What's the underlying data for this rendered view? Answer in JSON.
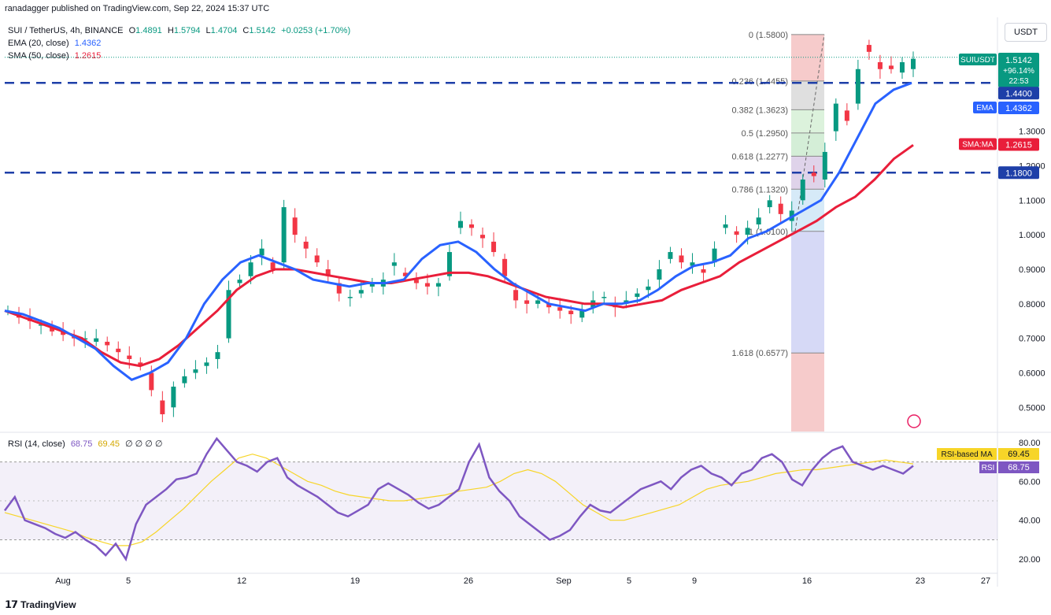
{
  "publisher": "ranadagger published on TradingView.com, Sep 22, 2024 15:37 UTC",
  "brand": "TradingView",
  "currency_button": "USDT",
  "legend": {
    "symbol": "SUI / TetherUS, 4h, BINANCE",
    "o_label": "O",
    "o": "1.4891",
    "h_label": "H",
    "h": "1.5794",
    "l_label": "L",
    "l": "1.4704",
    "c_label": "C",
    "c": "1.5142",
    "change": "+0.0253 (+1.70%)",
    "ema_label": "EMA (20, close)",
    "ema_value": "1.4362",
    "sma_label": "SMA (50, close)",
    "sma_value": "1.2615",
    "rsi_label": "RSI (14, close)",
    "rsi_value": "68.75",
    "rsi_ma_value": "69.45",
    "rsi_extra": "∅ ∅ ∅ ∅"
  },
  "price_tags": {
    "symbol_tag": "SUIUSDT",
    "last": "1.5142",
    "pct": "+96.14%",
    "countdown": "22:53",
    "res1": "1.4400",
    "ema_tag": "EMA",
    "ema": "1.4362",
    "sma_tag": "SMA:MA",
    "sma": "1.2615",
    "res2": "1.1800",
    "rsi_ma_tag": "RSI-based MA",
    "rsi_ma": "69.45",
    "rsi_tag": "RSI",
    "rsi": "68.75"
  },
  "colors": {
    "up": "#089981",
    "down": "#f23645",
    "ema": "#2962ff",
    "sma": "#e91e3a",
    "level": "#1e3fa8",
    "rsi": "#7e57c2",
    "rsi_ma": "#f7d528"
  },
  "chart_data": {
    "type": "candlestick",
    "title": "SUI / TetherUS, 4h, BINANCE",
    "y_axis_ticks": [
      "0.5000",
      "0.6000",
      "0.7000",
      "0.8000",
      "0.9000",
      "1.0000",
      "1.1000",
      "1.2000",
      "1.3000"
    ],
    "x_axis_ticks": [
      "Aug",
      "5",
      "12",
      "19",
      "26",
      "Sep",
      "5",
      "9",
      "16",
      "23",
      "27"
    ],
    "ylim": [
      0.43,
      1.63
    ],
    "horizontal_levels": [
      1.44,
      1.18
    ],
    "fib_levels": [
      {
        "ratio": "0",
        "price": 1.58,
        "label": "0 (1.5800)",
        "color": "#f5c2c2"
      },
      {
        "ratio": "0.236",
        "price": 1.4455,
        "label": "0.236 (1.4455)",
        "color": "#d9d9d9"
      },
      {
        "ratio": "0.382",
        "price": 1.3623,
        "label": "0.382 (1.3623)",
        "color": "#d6f0d6"
      },
      {
        "ratio": "0.5",
        "price": 1.295,
        "label": "0.5 (1.2950)",
        "color": "#cdebd0"
      },
      {
        "ratio": "0.618",
        "price": 1.2277,
        "label": "0.618 (1.2277)",
        "color": "#d9cbe6"
      },
      {
        "ratio": "0.786",
        "price": 1.132,
        "label": "0.786 (1.1320)",
        "color": "#cfe6f7"
      },
      {
        "ratio": "1",
        "price": 1.01,
        "label": "1 (1.0100)",
        "color": "#cfd2f5"
      },
      {
        "ratio": "1.618",
        "price": 0.6577,
        "label": "1.618 (0.6577)",
        "color": "#f5c2c2"
      }
    ],
    "price_path": [
      [
        0.78,
        0.78
      ],
      [
        0.77,
        0.76
      ],
      [
        0.76,
        0.75
      ],
      [
        0.74,
        0.74
      ],
      [
        0.73,
        0.72
      ],
      [
        0.72,
        0.71
      ],
      [
        0.71,
        0.7
      ],
      [
        0.7,
        0.7
      ],
      [
        0.69,
        0.7
      ],
      [
        0.69,
        0.68
      ],
      [
        0.67,
        0.66
      ],
      [
        0.65,
        0.64
      ],
      [
        0.63,
        0.62
      ],
      [
        0.6,
        0.55
      ],
      [
        0.52,
        0.48
      ],
      [
        0.5,
        0.56
      ],
      [
        0.57,
        0.59
      ],
      [
        0.6,
        0.61
      ],
      [
        0.62,
        0.63
      ],
      [
        0.64,
        0.66
      ],
      [
        0.7,
        0.84
      ],
      [
        0.86,
        0.87
      ],
      [
        0.88,
        0.92
      ],
      [
        0.94,
        0.96
      ],
      [
        0.92,
        0.9
      ],
      [
        0.92,
        1.08
      ],
      [
        1.05,
        1.0
      ],
      [
        0.98,
        0.96
      ],
      [
        0.94,
        0.92
      ],
      [
        0.9,
        0.88
      ],
      [
        0.86,
        0.83
      ],
      [
        0.82,
        0.82
      ],
      [
        0.83,
        0.84
      ],
      [
        0.85,
        0.86
      ],
      [
        0.85,
        0.87
      ],
      [
        0.91,
        0.92
      ],
      [
        0.89,
        0.88
      ],
      [
        0.87,
        0.86
      ],
      [
        0.86,
        0.85
      ],
      [
        0.85,
        0.86
      ],
      [
        0.88,
        0.95
      ],
      [
        1.02,
        1.04
      ],
      [
        1.03,
        1.02
      ],
      [
        1.0,
        0.99
      ],
      [
        0.98,
        0.95
      ],
      [
        0.93,
        0.88
      ],
      [
        0.84,
        0.81
      ],
      [
        0.81,
        0.8
      ],
      [
        0.8,
        0.81
      ],
      [
        0.8,
        0.79
      ],
      [
        0.79,
        0.78
      ],
      [
        0.78,
        0.77
      ],
      [
        0.76,
        0.78
      ],
      [
        0.79,
        0.81
      ],
      [
        0.82,
        0.82
      ],
      [
        0.8,
        0.79
      ],
      [
        0.8,
        0.81
      ],
      [
        0.82,
        0.83
      ],
      [
        0.84,
        0.85
      ],
      [
        0.87,
        0.9
      ],
      [
        0.93,
        0.95
      ],
      [
        0.94,
        0.92
      ],
      [
        0.91,
        0.92
      ],
      [
        0.9,
        0.89
      ],
      [
        0.92,
        0.96
      ],
      [
        1.02,
        1.03
      ],
      [
        1.01,
        1.0
      ],
      [
        1.0,
        1.02
      ],
      [
        1.03,
        1.05
      ],
      [
        1.08,
        1.1
      ],
      [
        1.09,
        1.06
      ],
      [
        1.04,
        1.07
      ],
      [
        1.1,
        1.16
      ],
      [
        1.18,
        1.17
      ],
      [
        1.16,
        1.24
      ],
      [
        1.3,
        1.38
      ],
      [
        1.36,
        1.33
      ],
      [
        1.38,
        1.48
      ],
      [
        1.55,
        1.53
      ],
      [
        1.5,
        1.48
      ],
      [
        1.49,
        1.48
      ],
      [
        1.47,
        1.5
      ],
      [
        1.48,
        1.51
      ]
    ],
    "ema20": [
      0.78,
      0.77,
      0.75,
      0.73,
      0.7,
      0.67,
      0.62,
      0.58,
      0.6,
      0.63,
      0.7,
      0.8,
      0.87,
      0.92,
      0.94,
      0.92,
      0.9,
      0.87,
      0.86,
      0.85,
      0.86,
      0.86,
      0.87,
      0.93,
      0.97,
      0.98,
      0.95,
      0.9,
      0.86,
      0.83,
      0.8,
      0.79,
      0.78,
      0.8,
      0.8,
      0.81,
      0.84,
      0.88,
      0.91,
      0.92,
      0.94,
      0.99,
      1.01,
      1.04,
      1.07,
      1.1,
      1.18,
      1.28,
      1.38,
      1.42,
      1.44
    ],
    "sma50": [
      0.78,
      0.76,
      0.74,
      0.72,
      0.7,
      0.66,
      0.63,
      0.62,
      0.64,
      0.68,
      0.73,
      0.78,
      0.84,
      0.88,
      0.9,
      0.9,
      0.89,
      0.88,
      0.87,
      0.86,
      0.86,
      0.87,
      0.88,
      0.89,
      0.89,
      0.88,
      0.86,
      0.84,
      0.82,
      0.81,
      0.8,
      0.8,
      0.79,
      0.8,
      0.81,
      0.84,
      0.86,
      0.88,
      0.92,
      0.95,
      0.98,
      1.01,
      1.04,
      1.08,
      1.11,
      1.16,
      1.22,
      1.26
    ],
    "rsi": {
      "ticks": [
        "20.00",
        "40.00",
        "60.00",
        "80.00"
      ],
      "ylim": [
        14,
        84
      ],
      "bands": [
        30,
        70
      ],
      "values": [
        45,
        52,
        40,
        38,
        36,
        33,
        31,
        34,
        30,
        27,
        22,
        28,
        20,
        38,
        48,
        52,
        56,
        61,
        62,
        64,
        74,
        82,
        76,
        70,
        68,
        65,
        70,
        72,
        62,
        58,
        55,
        52,
        48,
        44,
        42,
        45,
        48,
        56,
        59,
        56,
        53,
        49,
        46,
        48,
        52,
        56,
        70,
        79,
        62,
        55,
        50,
        42,
        38,
        34,
        30,
        32,
        35,
        42,
        48,
        45,
        44,
        48,
        52,
        56,
        58,
        60,
        56,
        62,
        66,
        68,
        64,
        62,
        58,
        64,
        66,
        72,
        74,
        70,
        61,
        58,
        66,
        72,
        76,
        78,
        70,
        68,
        66,
        68,
        66,
        64,
        68
      ],
      "ma_values": [
        44,
        42,
        40,
        38,
        36,
        34,
        31,
        29,
        27,
        27,
        29,
        34,
        40,
        46,
        53,
        60,
        66,
        72,
        74,
        72,
        68,
        64,
        60,
        58,
        55,
        53,
        52,
        51,
        50,
        50,
        51,
        52,
        53,
        55,
        56,
        57,
        60,
        64,
        66,
        64,
        60,
        54,
        48,
        44,
        40,
        40,
        42,
        44,
        46,
        48,
        52,
        56,
        58,
        59,
        60,
        62,
        64,
        65,
        66,
        66,
        67,
        68,
        69,
        70,
        71,
        70,
        69
      ]
    }
  }
}
